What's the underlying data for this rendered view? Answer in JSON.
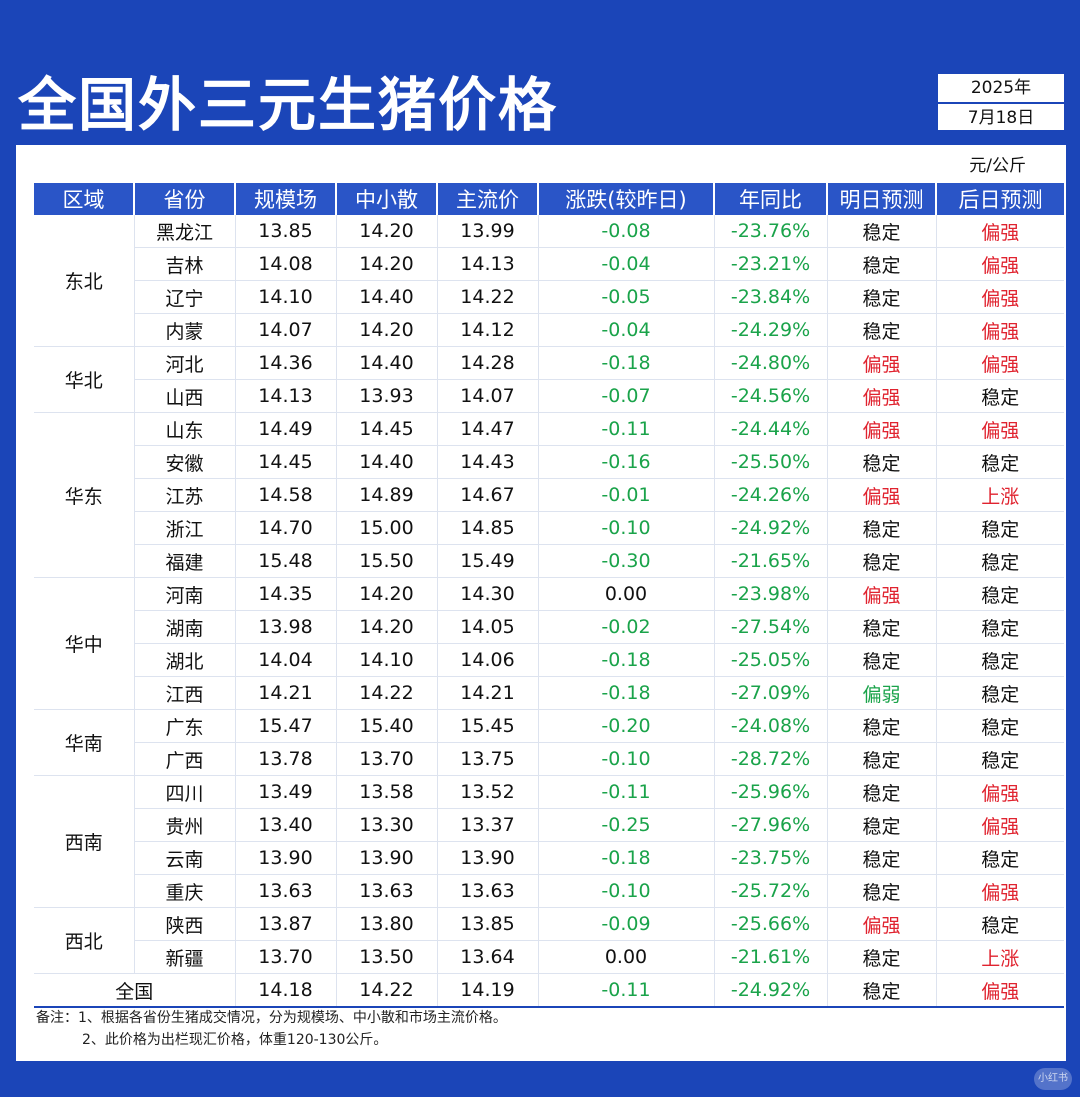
{
  "title": "全国外三元生猪价格",
  "date": {
    "year": "2025年",
    "day": "7月18日"
  },
  "unit": "元/公斤",
  "headers": [
    "区域",
    "省份",
    "规模场",
    "中小散",
    "主流价",
    "涨跌(较昨日)",
    "年同比",
    "明日预测",
    "后日预测"
  ],
  "groups": [
    {
      "region": "东北",
      "rows": [
        {
          "province": "黑龙江",
          "scale": "13.85",
          "small": "14.20",
          "main": "13.99",
          "change": "-0.08",
          "yoy": "-23.76%",
          "tomorrow": "稳定",
          "after": "偏强"
        },
        {
          "province": "吉林",
          "scale": "14.08",
          "small": "14.20",
          "main": "14.13",
          "change": "-0.04",
          "yoy": "-23.21%",
          "tomorrow": "稳定",
          "after": "偏强"
        },
        {
          "province": "辽宁",
          "scale": "14.10",
          "small": "14.40",
          "main": "14.22",
          "change": "-0.05",
          "yoy": "-23.84%",
          "tomorrow": "稳定",
          "after": "偏强"
        },
        {
          "province": "内蒙",
          "scale": "14.07",
          "small": "14.20",
          "main": "14.12",
          "change": "-0.04",
          "yoy": "-24.29%",
          "tomorrow": "稳定",
          "after": "偏强"
        }
      ]
    },
    {
      "region": "华北",
      "rows": [
        {
          "province": "河北",
          "scale": "14.36",
          "small": "14.40",
          "main": "14.28",
          "change": "-0.18",
          "yoy": "-24.80%",
          "tomorrow": "偏强",
          "after": "偏强"
        },
        {
          "province": "山西",
          "scale": "14.13",
          "small": "13.93",
          "main": "14.07",
          "change": "-0.07",
          "yoy": "-24.56%",
          "tomorrow": "偏强",
          "after": "稳定"
        }
      ]
    },
    {
      "region": "华东",
      "rows": [
        {
          "province": "山东",
          "scale": "14.49",
          "small": "14.45",
          "main": "14.47",
          "change": "-0.11",
          "yoy": "-24.44%",
          "tomorrow": "偏强",
          "after": "偏强"
        },
        {
          "province": "安徽",
          "scale": "14.45",
          "small": "14.40",
          "main": "14.43",
          "change": "-0.16",
          "yoy": "-25.50%",
          "tomorrow": "稳定",
          "after": "稳定"
        },
        {
          "province": "江苏",
          "scale": "14.58",
          "small": "14.89",
          "main": "14.67",
          "change": "-0.01",
          "yoy": "-24.26%",
          "tomorrow": "偏强",
          "after": "上涨"
        },
        {
          "province": "浙江",
          "scale": "14.70",
          "small": "15.00",
          "main": "14.85",
          "change": "-0.10",
          "yoy": "-24.92%",
          "tomorrow": "稳定",
          "after": "稳定"
        },
        {
          "province": "福建",
          "scale": "15.48",
          "small": "15.50",
          "main": "15.49",
          "change": "-0.30",
          "yoy": "-21.65%",
          "tomorrow": "稳定",
          "after": "稳定"
        }
      ]
    },
    {
      "region": "华中",
      "rows": [
        {
          "province": "河南",
          "scale": "14.35",
          "small": "14.20",
          "main": "14.30",
          "change": "0.00",
          "yoy": "-23.98%",
          "tomorrow": "偏强",
          "after": "稳定"
        },
        {
          "province": "湖南",
          "scale": "13.98",
          "small": "14.20",
          "main": "14.05",
          "change": "-0.02",
          "yoy": "-27.54%",
          "tomorrow": "稳定",
          "after": "稳定"
        },
        {
          "province": "湖北",
          "scale": "14.04",
          "small": "14.10",
          "main": "14.06",
          "change": "-0.18",
          "yoy": "-25.05%",
          "tomorrow": "稳定",
          "after": "稳定"
        },
        {
          "province": "江西",
          "scale": "14.21",
          "small": "14.22",
          "main": "14.21",
          "change": "-0.18",
          "yoy": "-27.09%",
          "tomorrow": "偏弱",
          "after": "稳定"
        }
      ]
    },
    {
      "region": "华南",
      "rows": [
        {
          "province": "广东",
          "scale": "15.47",
          "small": "15.40",
          "main": "15.45",
          "change": "-0.20",
          "yoy": "-24.08%",
          "tomorrow": "稳定",
          "after": "稳定"
        },
        {
          "province": "广西",
          "scale": "13.78",
          "small": "13.70",
          "main": "13.75",
          "change": "-0.10",
          "yoy": "-28.72%",
          "tomorrow": "稳定",
          "after": "稳定"
        }
      ]
    },
    {
      "region": "西南",
      "rows": [
        {
          "province": "四川",
          "scale": "13.49",
          "small": "13.58",
          "main": "13.52",
          "change": "-0.11",
          "yoy": "-25.96%",
          "tomorrow": "稳定",
          "after": "偏强"
        },
        {
          "province": "贵州",
          "scale": "13.40",
          "small": "13.30",
          "main": "13.37",
          "change": "-0.25",
          "yoy": "-27.96%",
          "tomorrow": "稳定",
          "after": "偏强"
        },
        {
          "province": "云南",
          "scale": "13.90",
          "small": "13.90",
          "main": "13.90",
          "change": "-0.18",
          "yoy": "-23.75%",
          "tomorrow": "稳定",
          "after": "稳定"
        },
        {
          "province": "重庆",
          "scale": "13.63",
          "small": "13.63",
          "main": "13.63",
          "change": "-0.10",
          "yoy": "-25.72%",
          "tomorrow": "稳定",
          "after": "偏强"
        }
      ]
    },
    {
      "region": "西北",
      "rows": [
        {
          "province": "陕西",
          "scale": "13.87",
          "small": "13.80",
          "main": "13.85",
          "change": "-0.09",
          "yoy": "-25.66%",
          "tomorrow": "偏强",
          "after": "稳定"
        },
        {
          "province": "新疆",
          "scale": "13.70",
          "small": "13.50",
          "main": "13.64",
          "change": "0.00",
          "yoy": "-21.61%",
          "tomorrow": "稳定",
          "after": "上涨"
        }
      ]
    }
  ],
  "total": {
    "label": "全国",
    "scale": "14.18",
    "small": "14.22",
    "main": "14.19",
    "change": "-0.11",
    "yoy": "-24.92%",
    "tomorrow": "稳定",
    "after": "偏强"
  },
  "notes": [
    "备注：1、根据各省份生猪成交情况，分为规模场、中小散和市场主流价格。",
    "2、此价格为出栏现汇价格，体重120-130公斤。"
  ],
  "watermark": "小红书",
  "colors": {
    "brand_blue": "#1b45b8",
    "header_blue": "#2a55c7",
    "up_red": "#e0232f",
    "down_green": "#1aa34a"
  }
}
